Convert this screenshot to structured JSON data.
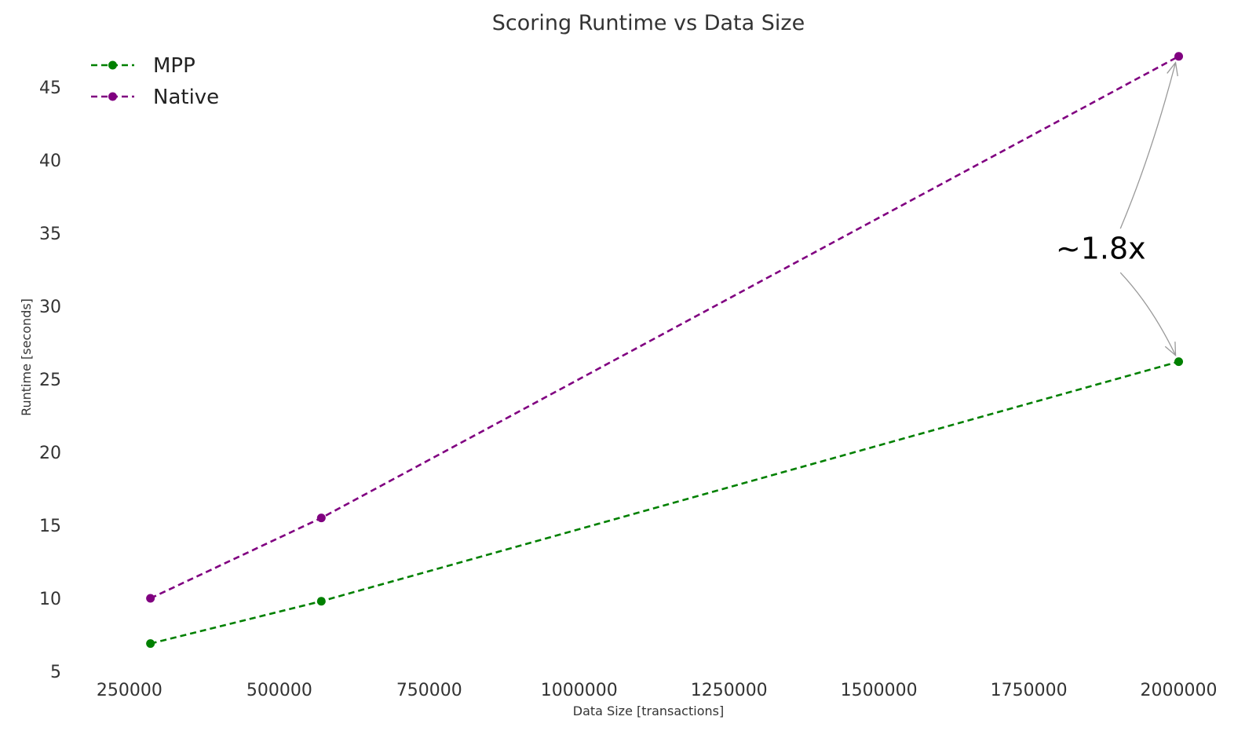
{
  "chart_data": {
    "type": "line",
    "title": "Scoring Runtime vs Data Size",
    "xlabel": "Data Size [transactions]",
    "ylabel": "Runtime [seconds]",
    "xlim": [
      165000,
      2070000
    ],
    "ylim": [
      5,
      48
    ],
    "xticks": [
      250000,
      500000,
      750000,
      1000000,
      1250000,
      1500000,
      1750000,
      2000000
    ],
    "yticks": [
      5,
      10,
      15,
      20,
      25,
      30,
      35,
      40,
      45
    ],
    "grid": false,
    "legend_position": "top-left",
    "series": [
      {
        "name": "MPP",
        "color": "#008000",
        "x": [
          285000,
          570000,
          2000000
        ],
        "y": [
          6.9,
          9.8,
          26.2
        ]
      },
      {
        "name": "Native",
        "color": "#800080",
        "x": [
          285000,
          570000,
          2000000
        ],
        "y": [
          10.0,
          15.5,
          47.1
        ]
      }
    ],
    "annotation": {
      "text": "~1.8x",
      "x": 1870000,
      "y": 33.8,
      "arrows_to": [
        {
          "x": 2000000,
          "y": 47.1
        },
        {
          "x": 2000000,
          "y": 26.2
        }
      ],
      "arrow_color": "#999999"
    }
  }
}
